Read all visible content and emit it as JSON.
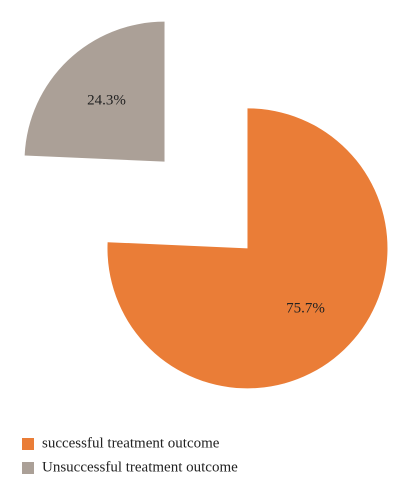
{
  "chart_data": {
    "type": "pie",
    "categories": [
      "successful treatment outcome",
      "Unsuccessful treatment outcome"
    ],
    "values": [
      75.7,
      24.3
    ],
    "value_labels": [
      "75.7%",
      "24.3%"
    ],
    "colors": [
      "#ea7d37",
      "#aba097"
    ]
  }
}
